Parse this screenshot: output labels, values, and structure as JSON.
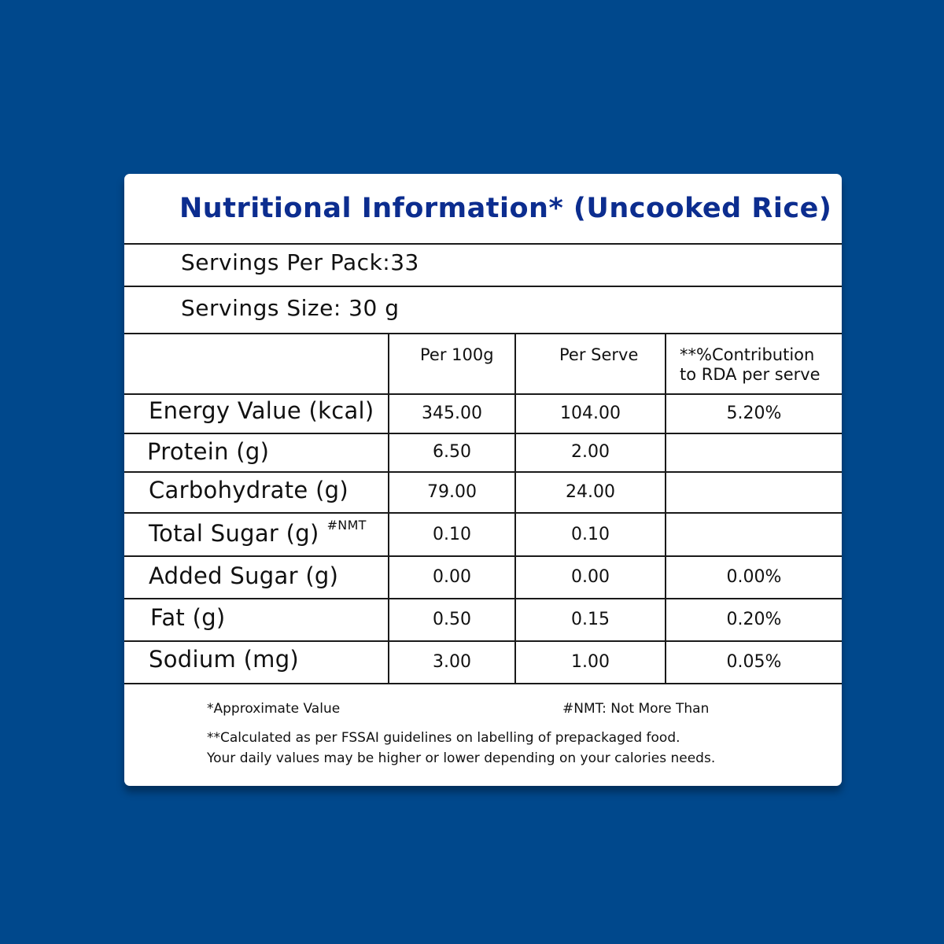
{
  "title": "Nutritional Information* (Uncooked Rice)",
  "servings_per_pack": "Servings Per Pack:33",
  "serving_size": "Servings Size: 30 g",
  "columns": {
    "per_100g": "Per 100g",
    "per_serve": "Per Serve",
    "rda_line1": "**%Contribution",
    "rda_line2": "to RDA per serve"
  },
  "rows": [
    {
      "name": "Energy Value (kcal)",
      "per_100g": "345.00",
      "per_serve": "104.00",
      "rda": "5.20%"
    },
    {
      "name": "Protein (g)",
      "per_100g": "6.50",
      "per_serve": "2.00",
      "rda": ""
    },
    {
      "name": "Carbohydrate (g)",
      "per_100g": "79.00",
      "per_serve": "24.00",
      "rda": ""
    },
    {
      "name": "Total Sugar (g)",
      "note": "#NMT",
      "per_100g": "0.10",
      "per_serve": "0.10",
      "rda": ""
    },
    {
      "name": "Added Sugar (g)",
      "per_100g": "0.00",
      "per_serve": "0.00",
      "rda": "0.00%"
    },
    {
      "name": "Fat (g)",
      "per_100g": "0.50",
      "per_serve": "0.15",
      "rda": "0.20%"
    },
    {
      "name": "Sodium (mg)",
      "per_100g": "3.00",
      "per_serve": "1.00",
      "rda": "0.05%"
    }
  ],
  "footnotes": {
    "approx": "*Approximate Value",
    "nmt": "#NMT: Not More Than",
    "fssai_line1": "**Calculated as per FSSAI guidelines on labelling of prepackaged food.",
    "fssai_line2": "Your daily values may be higher or lower depending on your calories needs."
  },
  "colors": {
    "background": "#00488c",
    "title": "#0c2d8f",
    "card": "#ffffff"
  }
}
